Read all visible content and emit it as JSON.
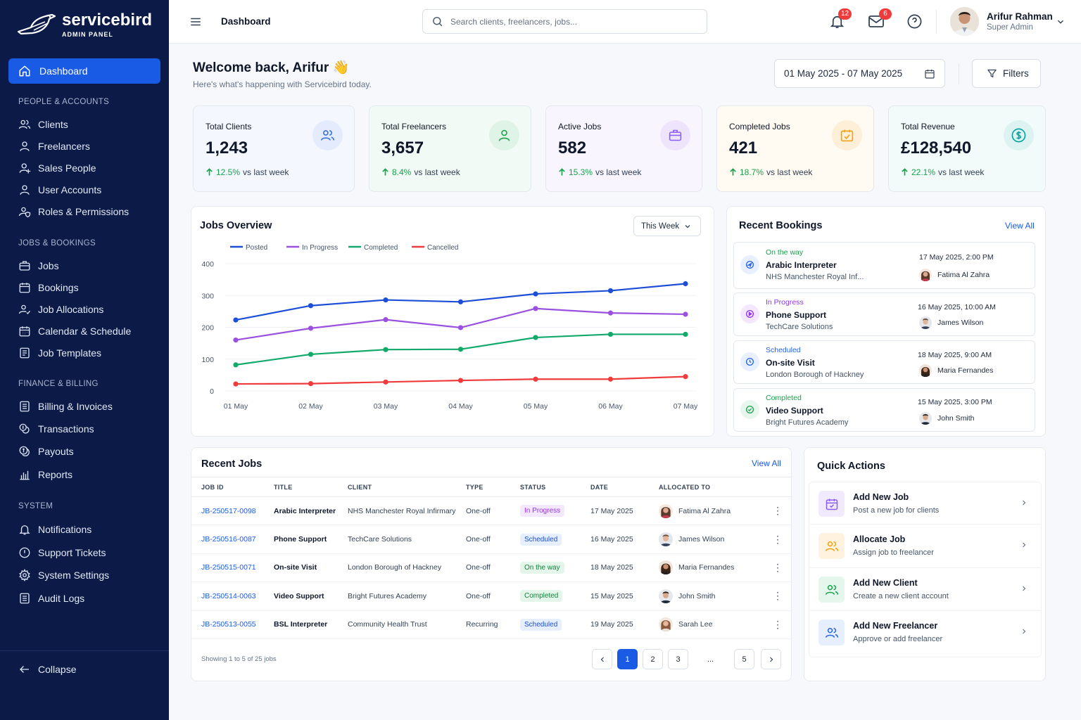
{
  "brand": {
    "name": "servicebird",
    "subtitle": "ADMIN PANEL"
  },
  "sidebar": {
    "active": {
      "label": "Dashboard",
      "icon": "home-icon"
    },
    "sections": [
      {
        "title": "PEOPLE & ACCOUNTS",
        "items": [
          {
            "label": "Clients",
            "icon": "users-icon"
          },
          {
            "label": "Freelancers",
            "icon": "user-icon"
          },
          {
            "label": "Sales People",
            "icon": "user-tie-icon"
          },
          {
            "label": "User Accounts",
            "icon": "user-icon"
          },
          {
            "label": "Roles & Permissions",
            "icon": "user-shield-icon"
          }
        ]
      },
      {
        "title": "JOBS & BOOKINGS",
        "items": [
          {
            "label": "Jobs",
            "icon": "briefcase-icon"
          },
          {
            "label": "Bookings",
            "icon": "calendar-icon"
          },
          {
            "label": "Job Allocations",
            "icon": "user-check-icon"
          },
          {
            "label": "Calendar & Schedule",
            "icon": "calendar-grid-icon"
          },
          {
            "label": "Job Templates",
            "icon": "document-icon"
          }
        ]
      },
      {
        "title": "FINANCE & BILLING",
        "items": [
          {
            "label": "Billing & Invoices",
            "icon": "invoice-icon"
          },
          {
            "label": "Transactions",
            "icon": "transactions-icon"
          },
          {
            "label": "Payouts",
            "icon": "payouts-icon"
          },
          {
            "label": "Reports",
            "icon": "bar-chart-icon"
          }
        ]
      },
      {
        "title": "SYSTEM",
        "items": [
          {
            "label": "Notifications",
            "icon": "bell-icon"
          },
          {
            "label": "Support Tickets",
            "icon": "ticket-icon"
          },
          {
            "label": "System Settings",
            "icon": "gear-icon"
          },
          {
            "label": "Audit Logs",
            "icon": "list-icon"
          }
        ]
      }
    ],
    "collapse_label": "Collapse"
  },
  "topbar": {
    "page_title": "Dashboard",
    "search_placeholder": "Search clients, freelancers, jobs...",
    "notifications_count": "12",
    "messages_count": "6",
    "user": {
      "name": "Arifur Rahman",
      "role": "Super Admin"
    }
  },
  "welcome": {
    "title": "Welcome back, Arifur 👋",
    "subtitle": "Here's what's happening with Servicebird today."
  },
  "date_range": "01 May 2025 - 07 May 2025",
  "filters_label": "Filters",
  "stats": [
    {
      "label": "Total Clients",
      "value": "1,243",
      "change": "12.5%",
      "suffix": "vs last week",
      "icon": "users-icon",
      "color": "#3b6fd8"
    },
    {
      "label": "Total Freelancers",
      "value": "3,657",
      "change": "8.4%",
      "suffix": "vs last week",
      "icon": "user-icon",
      "color": "#16a34a"
    },
    {
      "label": "Active Jobs",
      "value": "582",
      "change": "15.3%",
      "suffix": "vs last week",
      "icon": "briefcase-icon",
      "color": "#8b5cf6"
    },
    {
      "label": "Completed Jobs",
      "value": "421",
      "change": "18.7%",
      "suffix": "vs last week",
      "icon": "calendar-check-icon",
      "color": "#f59e0b"
    },
    {
      "label": "Total Revenue",
      "value": "£128,540",
      "change": "22.1%",
      "suffix": "vs last week",
      "icon": "dollar-icon",
      "color": "#0ea5a0"
    }
  ],
  "jobs_overview": {
    "title": "Jobs Overview",
    "period": "This Week"
  },
  "chart_data": {
    "type": "line",
    "categories": [
      "01 May",
      "02 May",
      "03 May",
      "04 May",
      "05 May",
      "06 May",
      "07 May"
    ],
    "ylim": [
      0,
      400
    ],
    "yticks": [
      0,
      100,
      200,
      300,
      400
    ],
    "grid": true,
    "legend": "top-left",
    "series": [
      {
        "name": "Posted",
        "color": "#1d4ed8",
        "values": [
          223,
          268,
          286,
          280,
          305,
          315,
          337
        ]
      },
      {
        "name": "In Progress",
        "color": "#9b51e0",
        "values": [
          160,
          197,
          224,
          199,
          259,
          245,
          241
        ]
      },
      {
        "name": "Completed",
        "color": "#12a96b",
        "values": [
          82,
          115,
          130,
          131,
          168,
          178,
          178
        ]
      },
      {
        "name": "Cancelled",
        "color": "#ef3b3b",
        "values": [
          22,
          23,
          28,
          33,
          37,
          37,
          45
        ]
      }
    ]
  },
  "recent_bookings": {
    "title": "Recent Bookings",
    "view_all": "View All",
    "items": [
      {
        "status": "On the way",
        "status_color": "#16a34a",
        "title": "Arabic Interpreter",
        "client": "NHS Manchester Royal Inf...",
        "date": "17 May 2025, 2:00 PM",
        "person": "Fatima Al Zahra",
        "icon": "navigation-icon",
        "icon_color": "#2563eb",
        "icon_bg": "#e8efff"
      },
      {
        "status": "In Progress",
        "status_color": "#9333ea",
        "title": "Phone Support",
        "client": "TechCare Solutions",
        "date": "16 May 2025, 10:00 AM",
        "person": "James Wilson",
        "icon": "play-icon",
        "icon_color": "#9333ea",
        "icon_bg": "#f3e8ff"
      },
      {
        "status": "Scheduled",
        "status_color": "#2563eb",
        "title": "On-site Visit",
        "client": "London Borough of Hackney",
        "date": "18 May 2025, 9:00 AM",
        "person": "Maria Fernandes",
        "icon": "clock-icon",
        "icon_color": "#2563eb",
        "icon_bg": "#e8efff"
      },
      {
        "status": "Completed",
        "status_color": "#16a34a",
        "title": "Video Support",
        "client": "Bright Futures Academy",
        "date": "15 May 2025, 3:00 PM",
        "person": "John Smith",
        "icon": "check-circle-icon",
        "icon_color": "#16a34a",
        "icon_bg": "#e7f7ee"
      }
    ]
  },
  "recent_jobs": {
    "title": "Recent Jobs",
    "view_all": "View All",
    "columns": [
      "JOB ID",
      "TITLE",
      "CLIENT",
      "TYPE",
      "STATUS",
      "DATE",
      "ALLOCATED TO"
    ],
    "rows": [
      {
        "id": "JB-250517-0098",
        "title": "Arabic Interpreter",
        "client": "NHS Manchester Royal Infirmary",
        "type": "One-off",
        "status": "In Progress",
        "status_fg": "#9333ea",
        "status_bg": "#f3e8ff",
        "date": "17 May 2025",
        "person": "Fatima Al Zahra"
      },
      {
        "id": "JB-250516-0087",
        "title": "Phone Support",
        "client": "TechCare Solutions",
        "type": "One-off",
        "status": "Scheduled",
        "status_fg": "#1d4ed8",
        "status_bg": "#e6efff",
        "date": "16 May 2025",
        "person": "James Wilson"
      },
      {
        "id": "JB-250515-0071",
        "title": "On-site Visit",
        "client": "London Borough of Hackney",
        "type": "One-off",
        "status": "On the way",
        "status_fg": "#15803d",
        "status_bg": "#e4f6ea",
        "date": "18 May 2025",
        "person": "Maria Fernandes"
      },
      {
        "id": "JB-250514-0063",
        "title": "Video Support",
        "client": "Bright Futures Academy",
        "type": "One-off",
        "status": "Completed",
        "status_fg": "#15803d",
        "status_bg": "#e4f6ea",
        "date": "15 May 2025",
        "person": "John Smith"
      },
      {
        "id": "JB-250513-0055",
        "title": "BSL Interpreter",
        "client": "Community Health Trust",
        "type": "Recurring",
        "status": "Scheduled",
        "status_fg": "#1d4ed8",
        "status_bg": "#e6efff",
        "date": "19 May 2025",
        "person": "Sarah Lee"
      }
    ],
    "footer": "Showing 1 to 5 of 25 jobs",
    "pages": [
      "1",
      "2",
      "3",
      "...",
      "5"
    ],
    "current_page": "1"
  },
  "quick_actions": {
    "title": "Quick Actions",
    "items": [
      {
        "title": "Add New Job",
        "subtitle": "Post a new job for clients",
        "icon": "calendar-plus-icon",
        "color": "#8b5cf6",
        "bg": "#f1eaff"
      },
      {
        "title": "Allocate Job",
        "subtitle": "Assign job to freelancer",
        "icon": "user-arrow-icon",
        "color": "#f59e0b",
        "bg": "#fff3e0"
      },
      {
        "title": "Add New Client",
        "subtitle": "Create a new client account",
        "icon": "users-icon",
        "color": "#16a34a",
        "bg": "#e5f6ec"
      },
      {
        "title": "Add New Freelancer",
        "subtitle": "Approve or add freelancer",
        "icon": "user-add-icon",
        "color": "#2563eb",
        "bg": "#e6efff"
      }
    ]
  }
}
